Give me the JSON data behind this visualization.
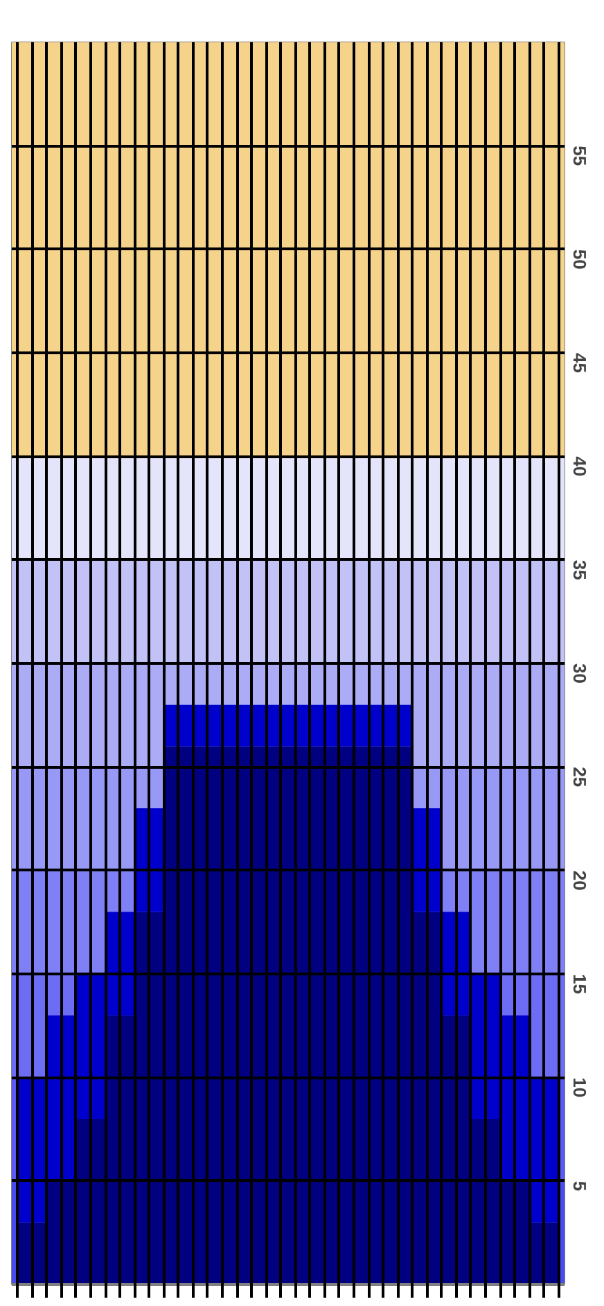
{
  "chart_data": {
    "type": "bar",
    "stacked": true,
    "categories": [
      null,
      null,
      null,
      null,
      null,
      null,
      null,
      null,
      null,
      null,
      null,
      null,
      null,
      null,
      null,
      null,
      null,
      null,
      null,
      null,
      null,
      null,
      null,
      null,
      null,
      null,
      null,
      null,
      null,
      null,
      null,
      null,
      null,
      null,
      null,
      null,
      null
    ],
    "series": [
      {
        "color": "#000080",
        "values": [
          3,
          3,
          5,
          5,
          8,
          8,
          13,
          13,
          18,
          18,
          26,
          26,
          26,
          26,
          26,
          26,
          26,
          26,
          26,
          26,
          26,
          26,
          26,
          26,
          26,
          26,
          26,
          18,
          18,
          13,
          13,
          8,
          8,
          5,
          5,
          3,
          3
        ]
      },
      {
        "color": "#0000cc",
        "values": [
          7,
          7,
          8,
          8,
          7,
          7,
          5,
          5,
          5,
          5,
          2,
          2,
          2,
          2,
          2,
          2,
          2,
          2,
          2,
          2,
          2,
          2,
          2,
          2,
          2,
          2,
          2,
          5,
          5,
          5,
          5,
          7,
          7,
          8,
          8,
          7,
          7
        ]
      }
    ],
    "ylim": [
      0,
      60
    ],
    "yticks": [
      5,
      10,
      15,
      20,
      25,
      30,
      35,
      40,
      45,
      50,
      55
    ],
    "bands": [
      {
        "axis": "y",
        "from": 0,
        "to": 5,
        "color": "#4a4af2"
      },
      {
        "axis": "y",
        "from": 5,
        "to": 10,
        "color": "#5a5af4"
      },
      {
        "axis": "y",
        "from": 10,
        "to": 15,
        "color": "#6c6cf5"
      },
      {
        "axis": "y",
        "from": 15,
        "to": 20,
        "color": "#8080f6"
      },
      {
        "axis": "y",
        "from": 20,
        "to": 25,
        "color": "#9898f6"
      },
      {
        "axis": "y",
        "from": 25,
        "to": 30,
        "color": "#ababf6"
      },
      {
        "axis": "y",
        "from": 30,
        "to": 35,
        "color": "#c2c2f7"
      },
      {
        "axis": "y",
        "from": 35,
        "to": 40,
        "color": "#e4e4fa"
      },
      {
        "axis": "y",
        "from": 40,
        "to": 60,
        "color": "#f5d38a"
      }
    ],
    "grid": true,
    "tick_labels": "y"
  }
}
